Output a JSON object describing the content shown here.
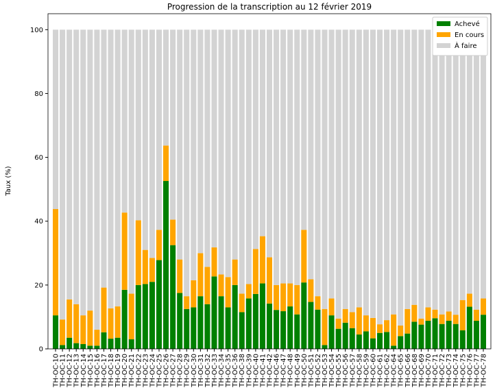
{
  "chart_data": {
    "type": "stacked_bar",
    "title": "Progression de la transcription au 12 février 2019",
    "y_label": "Taux (%)",
    "categories": [
      "TH-OC-10",
      "TH-OC-11",
      "TH-OC-12",
      "TH-OC-13",
      "TH-OC-14",
      "TH-OC-15",
      "TH-OC-16",
      "TH-OC-17",
      "TH-OC-18",
      "TH-OC-19",
      "TH-OC-20",
      "TH-OC-21",
      "TH-OC-22",
      "TH-OC-23",
      "TH-OC-24",
      "TH-OC-25",
      "TH-OC-26",
      "TH-OC-27",
      "TH-OC-28",
      "TH-OC-29",
      "TH-OC-30",
      "TH-OC-31",
      "TH-OC-32",
      "TH-OC-33",
      "TH-OC-34",
      "TH-OC-35",
      "TH-OC-36",
      "TH-OC-38",
      "TH-OC-39",
      "TH-OC-40",
      "TH-OC-41",
      "TH-OC-42",
      "TH-OC-46",
      "TH-OC-47",
      "TH-OC-48",
      "TH-OC-49",
      "TH-OC-50",
      "TH-OC-51",
      "TH-OC-52",
      "TH-OC-53",
      "TH-OC-54",
      "TH-OC-55",
      "TH-OC-56",
      "TH-OC-57",
      "TH-OC-58",
      "TH-OC-59",
      "TH-OC-60",
      "TH-OC-61",
      "TH-OC-62",
      "TH-OC-64",
      "TH-OC-65",
      "TH-OC-66",
      "TH-OC-68",
      "TH-OC-69",
      "TH-OC-70",
      "TH-OC-71",
      "TH-OC-72",
      "TH-OC-73",
      "TH-OC-74",
      "TH-OC-75",
      "TH-OC-76",
      "TH-OC-77",
      "TH-OC-78"
    ],
    "series": [
      {
        "name": "Achevé",
        "color": "#008000",
        "values": [
          10.5,
          1.2,
          3.5,
          1.8,
          1.5,
          1,
          1,
          5.2,
          3.2,
          3.5,
          18.5,
          3,
          20,
          20.3,
          21,
          27.8,
          52.6,
          32.5,
          17.5,
          12.5,
          13,
          16.5,
          14,
          22.7,
          16.5,
          13,
          20,
          11.5,
          15.8,
          17.2,
          20.5,
          14.2,
          12.2,
          11.8,
          13.3,
          10.8,
          20.8,
          14.7,
          12.3,
          1.2,
          10.5,
          6.3,
          8.2,
          6.5,
          4.5,
          5.5,
          3.3,
          5,
          5.3,
          1,
          4,
          4.8,
          8.5,
          7.6,
          8.8,
          9.6,
          7.8,
          8.8,
          7.8,
          5.8,
          13.2,
          8.8,
          10.7
        ]
      },
      {
        "name": "En cours",
        "color": "#ffa500",
        "values": [
          33.3,
          8,
          12,
          12.2,
          9,
          11,
          5,
          14,
          9.5,
          9.8,
          24.2,
          14.3,
          20.3,
          10.7,
          7.5,
          9.5,
          11.1,
          8,
          10.5,
          4,
          8.5,
          13.5,
          11.7,
          9.1,
          6.8,
          9.5,
          8,
          5.8,
          4.5,
          14.1,
          14.8,
          14.5,
          7.8,
          8.7,
          7.2,
          9.2,
          16.5,
          7.1,
          4.2,
          11.3,
          5.3,
          3.2,
          4.3,
          5,
          8.5,
          5,
          6.4,
          2.7,
          3.7,
          9.8,
          3.3,
          7.7,
          5.3,
          1.9,
          4.2,
          2.7,
          3,
          2.9,
          2.9,
          9.5,
          4.1,
          3.5,
          5.1
        ]
      },
      {
        "name": "À faire",
        "color": "#d3d3d3",
        "values": [
          56.2,
          90.8,
          84.5,
          86,
          89.5,
          88,
          94,
          80.8,
          87.3,
          86.7,
          57.3,
          82.7,
          59.7,
          69,
          71.5,
          62.7,
          36.3,
          59.5,
          72,
          83.5,
          78.5,
          70,
          74.3,
          68.2,
          76.7,
          77.5,
          72,
          82.7,
          79.7,
          68.7,
          64.7,
          71.3,
          80,
          79.5,
          79.5,
          80,
          62.7,
          78.2,
          83.5,
          87.5,
          84.2,
          90.5,
          87.5,
          88.5,
          87,
          89.5,
          90.3,
          92.3,
          91,
          89.2,
          92.7,
          87.5,
          86.2,
          90.5,
          87,
          87.7,
          89.2,
          88.3,
          89.3,
          84.7,
          82.7,
          87.7,
          84.2
        ]
      }
    ],
    "ylim": [
      0,
      105
    ],
    "yticks": [
      0,
      20,
      40,
      60,
      80,
      100
    ],
    "legend": "upper right"
  }
}
